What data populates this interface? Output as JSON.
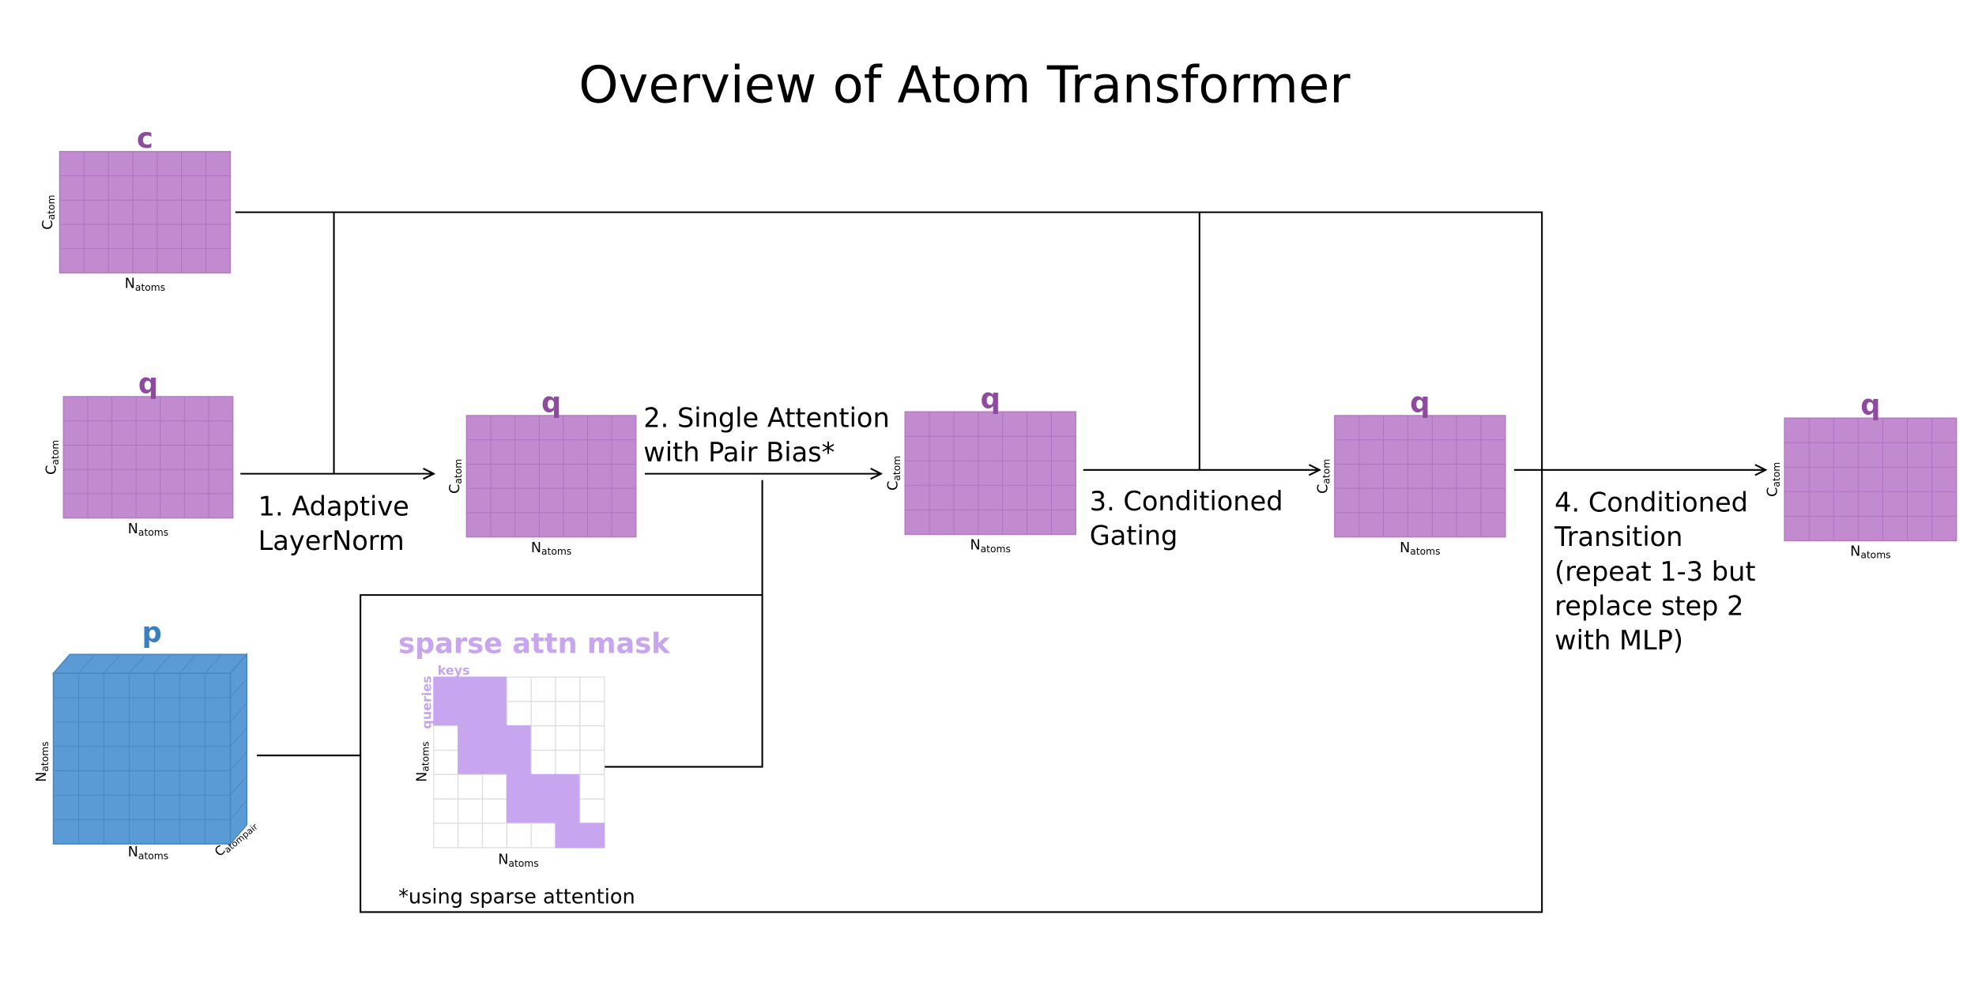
{
  "title": "Overview of Atom Transformer",
  "nodes": [
    {
      "label": "c",
      "row_axis": {
        "base": "C",
        "sub": "atom"
      },
      "col_axis": {
        "base": "N",
        "sub": "atoms"
      }
    },
    {
      "label": "q",
      "row_axis": {
        "base": "C",
        "sub": "atom"
      },
      "col_axis": {
        "base": "N",
        "sub": "atoms"
      }
    },
    {
      "label": "q",
      "row_axis": {
        "base": "C",
        "sub": "atom"
      },
      "col_axis": {
        "base": "N",
        "sub": "atoms"
      }
    },
    {
      "label": "q",
      "row_axis": {
        "base": "C",
        "sub": "atom"
      },
      "col_axis": {
        "base": "N",
        "sub": "atoms"
      }
    },
    {
      "label": "q",
      "row_axis": {
        "base": "C",
        "sub": "atom"
      },
      "col_axis": {
        "base": "N",
        "sub": "atoms"
      }
    },
    {
      "label": "q",
      "row_axis": {
        "base": "C",
        "sub": "atom"
      },
      "col_axis": {
        "base": "N",
        "sub": "atoms"
      }
    }
  ],
  "pair": {
    "label": "p",
    "row_axis": {
      "base": "N",
      "sub": "atoms"
    },
    "col_axis": {
      "base": "N",
      "sub": "atoms"
    },
    "depth_axis": {
      "base": "C",
      "sub": "atompair"
    }
  },
  "steps": [
    {
      "lines": [
        "1. Adaptive",
        "LayerNorm"
      ]
    },
    {
      "lines": [
        "2. Single Attention",
        "with Pair Bias*"
      ]
    },
    {
      "lines": [
        "3. Conditioned",
        "Gating"
      ]
    },
    {
      "lines": [
        "4. Conditioned",
        "Transition",
        "(repeat 1-3 but",
        "replace step 2",
        "with MLP)"
      ]
    }
  ],
  "mask": {
    "title": "sparse attn mask",
    "keys_label": "keys",
    "queries_label": "queries",
    "row_axis": {
      "base": "N",
      "sub": "atoms"
    },
    "col_axis": {
      "base": "N",
      "sub": "atoms"
    },
    "footnote": "*using sparse attention"
  }
}
